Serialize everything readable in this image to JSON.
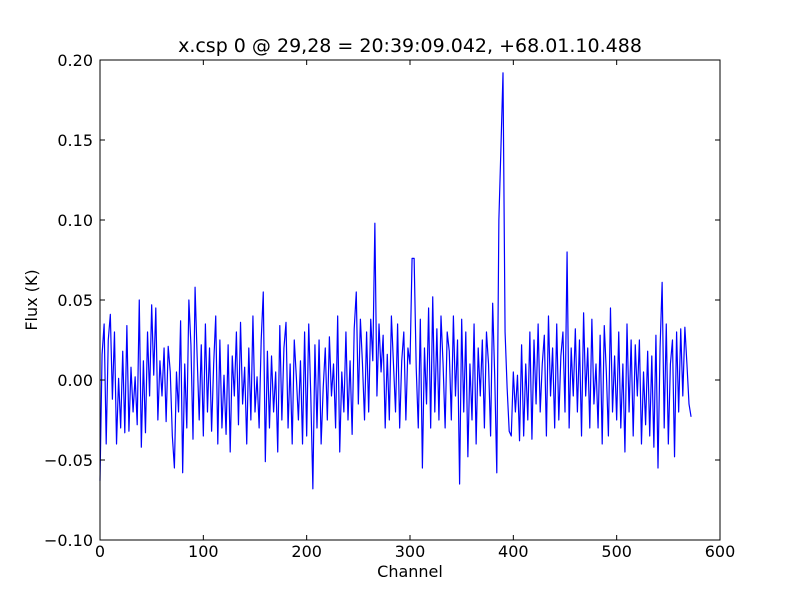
{
  "chart_data": {
    "type": "line",
    "title": "x.csp 0 @ 29,28 = 20:39:09.042, +68.01.10.488",
    "x_label": "Channel",
    "y_label": "Flux (K)",
    "color": "#0000ff",
    "xlim": [
      0,
      600
    ],
    "xticks": [
      0,
      100,
      200,
      300,
      400,
      500,
      600
    ],
    "ylim": [
      -0.1,
      0.2
    ],
    "yticks": [
      {
        "value": -0.1,
        "label": "−0.10"
      },
      {
        "value": -0.05,
        "label": "−0.05"
      },
      {
        "value": 0,
        "label": "0.00"
      },
      {
        "value": 0.05,
        "label": "0.05"
      },
      {
        "value": 0.1,
        "label": "0.10"
      },
      {
        "value": 0.15,
        "label": "0.15"
      },
      {
        "value": 0.2,
        "label": "0.20"
      }
    ],
    "x": [
      0,
      2,
      4,
      6,
      8,
      10,
      12,
      14,
      16,
      18,
      20,
      22,
      24,
      26,
      28,
      30,
      32,
      34,
      36,
      38,
      40,
      42,
      44,
      46,
      48,
      50,
      52,
      54,
      56,
      58,
      60,
      62,
      64,
      66,
      68,
      70,
      72,
      74,
      76,
      78,
      80,
      82,
      84,
      86,
      88,
      90,
      92,
      94,
      96,
      98,
      100,
      102,
      104,
      106,
      108,
      110,
      112,
      114,
      116,
      118,
      120,
      122,
      124,
      126,
      128,
      130,
      132,
      134,
      136,
      138,
      140,
      142,
      144,
      146,
      148,
      150,
      152,
      154,
      156,
      158,
      160,
      162,
      164,
      166,
      168,
      170,
      172,
      174,
      176,
      178,
      180,
      182,
      184,
      186,
      188,
      190,
      192,
      194,
      196,
      198,
      200,
      202,
      204,
      206,
      208,
      210,
      212,
      214,
      216,
      218,
      220,
      222,
      224,
      226,
      228,
      230,
      232,
      234,
      236,
      238,
      240,
      242,
      244,
      246,
      248,
      250,
      252,
      254,
      256,
      258,
      260,
      262,
      264,
      266,
      268,
      270,
      272,
      274,
      276,
      278,
      280,
      282,
      284,
      286,
      288,
      290,
      292,
      294,
      296,
      298,
      300,
      302,
      304,
      306,
      308,
      310,
      312,
      314,
      316,
      318,
      320,
      322,
      324,
      326,
      328,
      330,
      332,
      334,
      336,
      338,
      340,
      342,
      344,
      346,
      348,
      350,
      352,
      354,
      356,
      358,
      360,
      362,
      364,
      366,
      368,
      370,
      372,
      374,
      376,
      378,
      380,
      382,
      384,
      386,
      388,
      390,
      392,
      394,
      396,
      398,
      400,
      402,
      404,
      406,
      408,
      410,
      412,
      414,
      416,
      418,
      420,
      422,
      424,
      426,
      428,
      430,
      432,
      434,
      436,
      438,
      440,
      442,
      444,
      446,
      448,
      450,
      452,
      454,
      456,
      458,
      460,
      462,
      464,
      466,
      468,
      470,
      472,
      474,
      476,
      478,
      480,
      482,
      484,
      486,
      488,
      490,
      492,
      494,
      496,
      498,
      500,
      502,
      504,
      506,
      508,
      510,
      512,
      514,
      516,
      518,
      520,
      522,
      524,
      526,
      528,
      530,
      532,
      534,
      536,
      538,
      540,
      542,
      544,
      546,
      548,
      550,
      552,
      554,
      556,
      558,
      560,
      562,
      564,
      566,
      568,
      570,
      572
    ],
    "values": [
      -0.063,
      0.016,
      0.035,
      -0.04,
      0.025,
      0.041,
      -0.012,
      0.03,
      -0.04,
      0.001,
      -0.03,
      0.018,
      -0.033,
      0.034,
      -0.032,
      0.008,
      -0.02,
      0.002,
      -0.028,
      0.05,
      -0.042,
      0.012,
      -0.033,
      0.03,
      -0.01,
      0.047,
      0.003,
      0.045,
      -0.025,
      0.012,
      -0.01,
      0.02,
      -0.026,
      0.021,
      0.005,
      -0.035,
      -0.055,
      0.005,
      -0.02,
      0.037,
      -0.058,
      0.01,
      -0.03,
      0.05,
      0.022,
      -0.037,
      0.058,
      0.015,
      -0.025,
      0.022,
      -0.035,
      0.035,
      -0.02,
      0.02,
      -0.032,
      0.01,
      0.04,
      -0.04,
      0.025,
      -0.03,
      0.003,
      -0.034,
      0.022,
      -0.045,
      0.015,
      -0.01,
      0.03,
      -0.028,
      0.036,
      -0.015,
      0.008,
      -0.04,
      0.02,
      -0.025,
      0.04,
      -0.02,
      0.002,
      -0.03,
      0.025,
      0.055,
      -0.051,
      0.018,
      -0.03,
      0.015,
      -0.02,
      0.005,
      -0.045,
      0.034,
      -0.025,
      0.02,
      0.036,
      -0.03,
      0.01,
      -0.04,
      0.025,
      0.002,
      -0.025,
      0.012,
      -0.04,
      0.03,
      -0.035,
      0.035,
      -0.01,
      -0.068,
      0.022,
      -0.03,
      0.025,
      -0.04,
      -0.005,
      0.02,
      -0.025,
      0.027,
      -0.01,
      0.01,
      -0.03,
      0.04,
      -0.045,
      0.005,
      -0.02,
      0.03,
      -0.025,
      0.012,
      -0.034,
      0.032,
      0.055,
      -0.015,
      0.038,
      0.01,
      -0.025,
      0.03,
      -0.02,
      0.038,
      0.012,
      0.098,
      -0.01,
      0.035,
      0.005,
      0.028,
      -0.03,
      0.016,
      -0.025,
      0.04,
      0.01,
      -0.02,
      0.035,
      -0.03,
      0.012,
      0.03,
      -0.025,
      0.02,
      0.01,
      0.076,
      0.076,
      0.008,
      -0.03,
      0.038,
      -0.055,
      0.02,
      -0.015,
      0.045,
      -0.03,
      0.052,
      -0.02,
      0.032,
      -0.025,
      0.04,
      0.01,
      -0.03,
      0.03,
      0.018,
      -0.025,
      0.04,
      -0.01,
      0.025,
      -0.065,
      0.038,
      -0.02,
      0.03,
      -0.048,
      0.01,
      -0.025,
      0.035,
      -0.04,
      0.02,
      -0.01,
      0.025,
      -0.03,
      0.03,
      0.01,
      -0.035,
      0.048,
      0.002,
      -0.058,
      0.1,
      0.145,
      0.192,
      0.03,
      -0.005,
      -0.032,
      -0.035,
      0.005,
      -0.02,
      0.003,
      -0.038,
      0.022,
      -0.035,
      0.01,
      -0.025,
      0.03,
      -0.037,
      0.025,
      -0.015,
      0.035,
      -0.02,
      0.01,
      0.028,
      -0.035,
      0.04,
      -0.01,
      0.02,
      -0.03,
      0.035,
      -0.025,
      0.015,
      0.03,
      -0.02,
      0.08,
      -0.03,
      0.02,
      -0.01,
      0.032,
      -0.02,
      0.025,
      -0.035,
      0.042,
      -0.01,
      0.02,
      -0.03,
      0.038,
      -0.015,
      0.01,
      -0.03,
      0.028,
      -0.04,
      0.034,
      0.005,
      -0.035,
      0.045,
      -0.02,
      0.015,
      -0.025,
      0.03,
      -0.03,
      0.01,
      -0.045,
      0.035,
      -0.02,
      0.025,
      -0.035,
      0.022,
      -0.01,
      0.025,
      -0.04,
      0.005,
      -0.028,
      0.018,
      -0.035,
      0.015,
      -0.042,
      0.028,
      -0.055,
      0.02,
      0.061,
      -0.03,
      0.035,
      -0.04,
      0.01,
      0.025,
      -0.048,
      0.03,
      -0.02,
      0.032,
      -0.01,
      0.033,
      0.01,
      -0.015,
      -0.023
    ]
  }
}
